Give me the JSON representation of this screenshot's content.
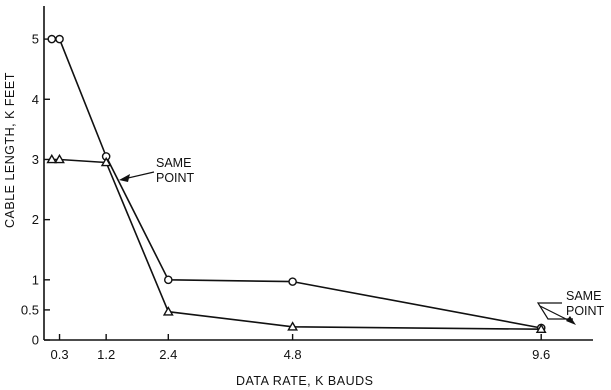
{
  "chart_data": {
    "type": "line",
    "title": "",
    "xlabel": "DATA RATE, K BAUDS",
    "ylabel": "CABLE LENGTH, K FEET",
    "xlim": [
      0,
      10.6
    ],
    "ylim": [
      0,
      5.55
    ],
    "grid": false,
    "x_ticks": [
      {
        "value": 0.3,
        "label": "0.3"
      },
      {
        "value": 1.2,
        "label": "1.2"
      },
      {
        "value": 2.4,
        "label": "2.4"
      },
      {
        "value": 4.8,
        "label": "4.8"
      },
      {
        "value": 9.6,
        "label": "9.6"
      }
    ],
    "y_ticks": [
      {
        "value": 0,
        "label": "0"
      },
      {
        "value": 0.5,
        "label": "0.5"
      },
      {
        "value": 1,
        "label": "1"
      },
      {
        "value": 2,
        "label": "2"
      },
      {
        "value": 3,
        "label": "3"
      },
      {
        "value": 4,
        "label": "4"
      },
      {
        "value": 5,
        "label": "5"
      }
    ],
    "series": [
      {
        "marker": "circle",
        "points": [
          [
            0.15,
            5.0
          ],
          [
            0.3,
            5.0
          ],
          [
            1.2,
            3.05
          ],
          [
            2.4,
            1.0
          ],
          [
            4.8,
            0.97
          ],
          [
            9.6,
            0.2
          ]
        ]
      },
      {
        "marker": "triangle",
        "points": [
          [
            0.15,
            3.0
          ],
          [
            0.3,
            3.0
          ],
          [
            1.2,
            2.95
          ],
          [
            2.4,
            0.47
          ],
          [
            4.8,
            0.22
          ],
          [
            9.6,
            0.18
          ]
        ]
      }
    ],
    "annotations": [
      {
        "lines": [
          "SAME",
          "POINT"
        ],
        "x": 1.2,
        "y": 3.0
      },
      {
        "lines": [
          "SAME",
          "POINT"
        ],
        "x": 9.6,
        "y": 0.2
      }
    ]
  }
}
